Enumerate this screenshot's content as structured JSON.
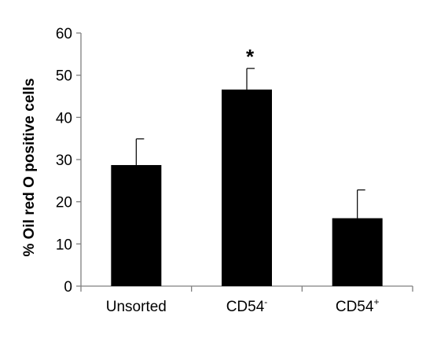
{
  "chart_data": {
    "type": "bar",
    "ylabel": "% Oil red O positive cells",
    "xlabel": "",
    "ylim": [
      0,
      60
    ],
    "yticks": [
      "0",
      "10",
      "20",
      "30",
      "40",
      "50",
      "60"
    ],
    "categories": [
      {
        "base": "Unsorted",
        "sup": ""
      },
      {
        "base": "CD54",
        "sup": "-"
      },
      {
        "base": "CD54",
        "sup": "+"
      }
    ],
    "values": [
      28.7,
      46.6,
      16.1
    ],
    "error_upper": [
      6.2,
      5.0,
      6.7
    ],
    "annotations": [
      {
        "category_index": 1,
        "text": "*"
      }
    ],
    "bar_color": "#000000",
    "grid": false,
    "legend": "none"
  }
}
